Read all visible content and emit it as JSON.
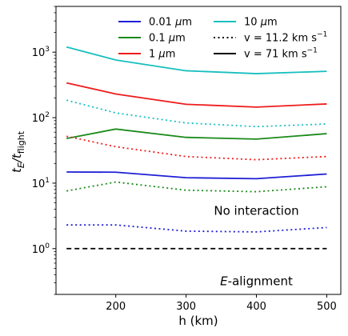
{
  "chart_data": {
    "type": "line",
    "xlabel": "h (km)",
    "ylabel_parts": [
      "t",
      "E",
      "/t",
      "flight"
    ],
    "xlim": [
      115,
      520
    ],
    "ylim": [
      0.2,
      5000
    ],
    "yscale": "log",
    "grid": false,
    "legend_position": "top-right",
    "x": [
      130,
      200,
      300,
      400,
      500
    ],
    "x_ticks": [
      200,
      300,
      400,
      500
    ],
    "y_ticks": [
      1,
      10,
      100,
      1000
    ],
    "y_tick_labels": [
      {
        "base": "10",
        "exp": "0"
      },
      {
        "base": "10",
        "exp": "1"
      },
      {
        "base": "10",
        "exp": "2"
      },
      {
        "base": "10",
        "exp": "3"
      }
    ],
    "series": [
      {
        "size": "0.01",
        "unit": "μm",
        "color": "#1f1fd6",
        "velocity": "v = 71 km s",
        "dash": "solid",
        "values": [
          14.8,
          14.7,
          12.1,
          11.7,
          13.8
        ]
      },
      {
        "size": "0.1",
        "unit": "μm",
        "color": "#1a8a1a",
        "velocity": "v = 71 km s",
        "dash": "solid",
        "values": [
          48,
          67,
          50,
          47,
          57
        ]
      },
      {
        "size": "1",
        "unit": "μm",
        "color": "#ee1c1c",
        "velocity": "v = 71 km s",
        "dash": "solid",
        "values": [
          340,
          230,
          160,
          145,
          162
        ]
      },
      {
        "size": "10",
        "unit": "μm",
        "color": "#17bfbf",
        "velocity": "v = 71 km s",
        "dash": "solid",
        "values": [
          1200,
          760,
          520,
          470,
          510
        ]
      },
      {
        "size": "0.01",
        "unit": "μm",
        "color": "#1f1fd6",
        "velocity": "v = 11.2 km s",
        "dash": "dotted",
        "values": [
          2.3,
          2.3,
          1.85,
          1.8,
          2.1
        ]
      },
      {
        "size": "0.1",
        "unit": "μm",
        "color": "#1a8a1a",
        "velocity": "v = 11.2 km s",
        "dash": "dotted",
        "values": [
          7.6,
          10.4,
          7.8,
          7.4,
          8.8
        ]
      },
      {
        "size": "1",
        "unit": "μm",
        "color": "#ee1c1c",
        "velocity": "v = 11.2 km s",
        "dash": "dotted",
        "values": [
          52,
          36,
          25.5,
          22.8,
          25.5
        ]
      },
      {
        "size": "10",
        "unit": "μm",
        "color": "#17bfbf",
        "velocity": "v = 11.2 km s",
        "dash": "dotted",
        "values": [
          185,
          118,
          83,
          73,
          80
        ]
      }
    ],
    "reference_line": {
      "y": 1,
      "color": "#000000",
      "dash": "dashed"
    },
    "legend": {
      "sizes": [
        {
          "value": "0.01",
          "unit": "μm",
          "color": "#1f1fd6"
        },
        {
          "value": "0.1",
          "unit": "μm",
          "color": "#1a8a1a"
        },
        {
          "value": "1",
          "unit": "μm",
          "color": "#ee1c1c"
        },
        {
          "value": "10",
          "unit": "μm",
          "color": "#17bfbf"
        }
      ],
      "velocities": [
        {
          "text": "v = 11.2 km s",
          "exp": "−1",
          "style": "dotted",
          "color": "#000000"
        },
        {
          "text": "v = 71 km s",
          "exp": "−1",
          "style": "solid",
          "color": "#000000"
        }
      ]
    },
    "annotations": [
      {
        "text": "No interaction",
        "x": 400,
        "y": 3.8
      },
      {
        "italic": "E",
        "text": "-alignment",
        "x": 400,
        "y": 0.32
      }
    ]
  }
}
